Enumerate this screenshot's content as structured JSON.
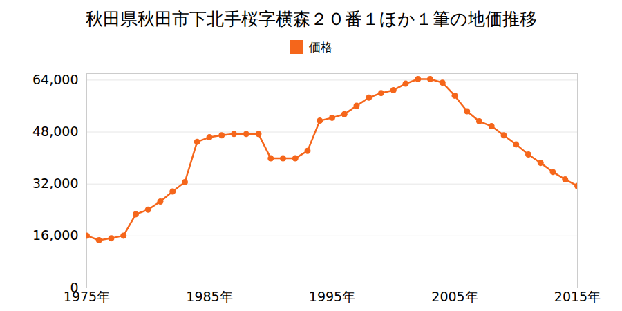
{
  "chart_data": {
    "type": "line",
    "title": "秋田県秋田市下北手桜字横森２０番１ほか１筆の地価推移",
    "x": [
      1975,
      1976,
      1977,
      1978,
      1979,
      1980,
      1981,
      1982,
      1983,
      1984,
      1985,
      1986,
      1987,
      1988,
      1989,
      1990,
      1991,
      1992,
      1993,
      1994,
      1995,
      1996,
      1997,
      1998,
      1999,
      2000,
      2001,
      2002,
      2003,
      2004,
      2005,
      2006,
      2007,
      2008,
      2009,
      2010,
      2011,
      2012,
      2013,
      2014,
      2015
    ],
    "series": [
      {
        "name": "価格",
        "color": "#f5661b",
        "marker": "circle",
        "line_style": "solid",
        "values": [
          16100,
          14700,
          15300,
          16100,
          22700,
          24100,
          26600,
          29700,
          32600,
          45000,
          46400,
          47000,
          47400,
          47400,
          47400,
          39900,
          39900,
          39900,
          42200,
          51500,
          52400,
          53500,
          56100,
          58600,
          60000,
          60900,
          62900,
          64300,
          64300,
          63200,
          59200,
          54400,
          51300,
          49800,
          47000,
          44200,
          41100,
          38500,
          35700,
          33400,
          31400
        ]
      }
    ],
    "xlim": [
      1975,
      2015
    ],
    "xticks": [
      {
        "value": 1975,
        "label": "1975年"
      },
      {
        "value": 1985,
        "label": "1985年"
      },
      {
        "value": 1995,
        "label": "1995年"
      },
      {
        "value": 2005,
        "label": "2005年"
      },
      {
        "value": 2015,
        "label": "2015年"
      }
    ],
    "ylim": [
      0,
      66000
    ],
    "yticks": [
      0,
      {
        "value": 16000,
        "label": "16,000"
      },
      {
        "value": 32000,
        "label": "32,000"
      },
      {
        "value": 48000,
        "label": "48,000"
      },
      {
        "value": 64000,
        "label": "64,000"
      }
    ],
    "grid": true,
    "legend": "top"
  }
}
